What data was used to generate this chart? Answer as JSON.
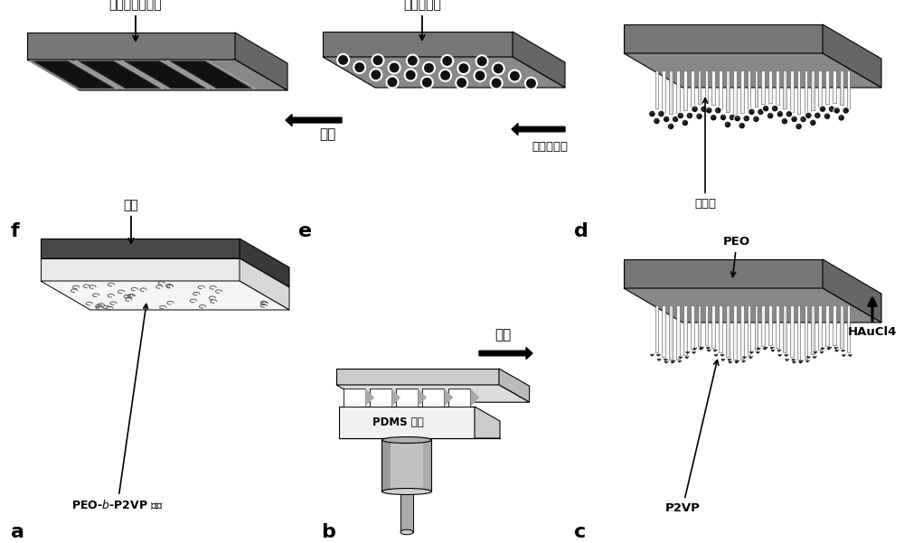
{
  "bg_color": "#ffffff",
  "panel_labels": [
    "a",
    "b",
    "c",
    "d",
    "e",
    "f"
  ],
  "text": {
    "film_label": "PEO-$b$-P2VP 薄膜",
    "substrate_label": "基底",
    "pdms_label": "PDMS 模板",
    "heat_label": "加热",
    "p2vp_label": "P2VP",
    "peo_label": "PEO",
    "haucl4_label": "HAuCl4",
    "gold_ion_label": "金离子",
    "plasma_label": "等离子清洗",
    "sinter_label": "烧结",
    "np_pattern_label": "金粒子图案",
    "np_array_label": "金粒子图案阵列"
  },
  "colors": {
    "white_film": "#f5f5f5",
    "white_film_front": "#e8e8e8",
    "white_film_side": "#d8d8d8",
    "dark_base": "#555555",
    "dark_base_front": "#484848",
    "dark_base_side": "#3a3a3a",
    "substrate_top": "#888888",
    "substrate_front": "#777777",
    "substrate_side": "#666666",
    "fin_white": "#f2f2f2",
    "fin_gray": "#cccccc",
    "np_black": "#111111",
    "stripe_black": "#1a1a1a",
    "pdms_body": "#e0e0e0",
    "pdms_teeth_gap": "#bbbbbb",
    "stamp_body": "#b0b0b0",
    "stamp_top": "#cccccc",
    "stamp_shaft": "#aaaaaa"
  }
}
